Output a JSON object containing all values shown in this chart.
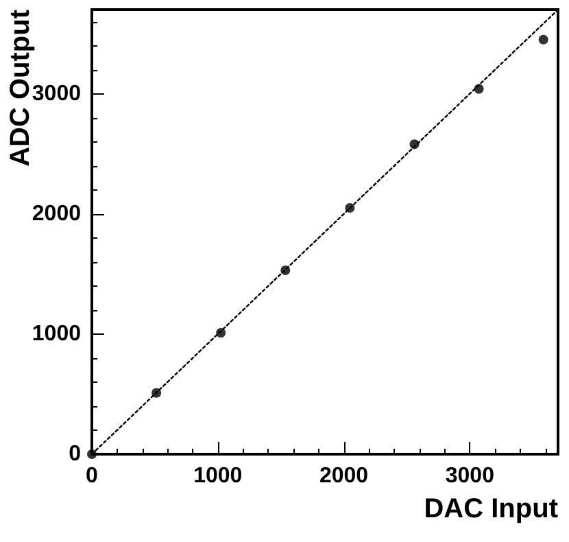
{
  "chart_data": {
    "type": "scatter",
    "xlabel": "DAC Input",
    "ylabel": "ADC Output",
    "x": [
      0,
      512,
      1024,
      1536,
      2048,
      2560,
      3072,
      3584
    ],
    "series": [
      {
        "color": "#000000",
        "marker": "circle",
        "values": [
          0,
          510,
          1010,
          1530,
          2050,
          2580,
          3040,
          3450
        ]
      },
      {
        "type": "line",
        "color": "#000000",
        "line_style": "dotted",
        "marker": "none",
        "x": [
          0,
          3700
        ],
        "values": [
          0,
          3700
        ]
      }
    ],
    "xlim": [
      0,
      3700
    ],
    "xticks": [
      0,
      1000,
      2000,
      3000
    ],
    "ylim": [
      0,
      3700
    ],
    "yticks": [
      0,
      1000,
      2000,
      3000
    ],
    "grid": false
  }
}
